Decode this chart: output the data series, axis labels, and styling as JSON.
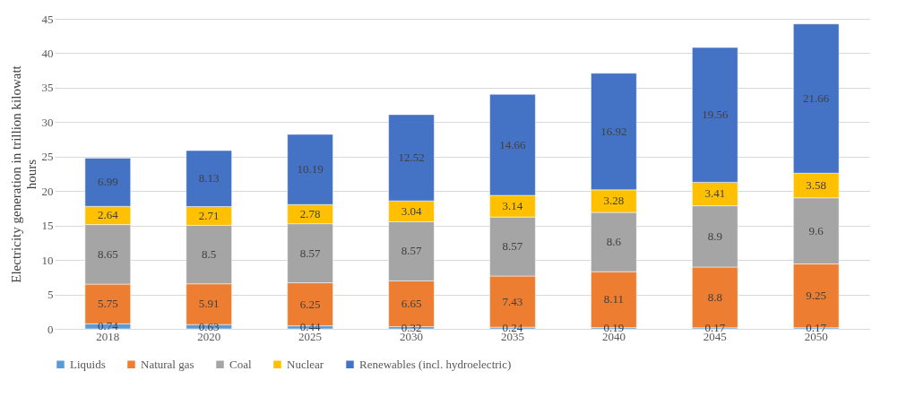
{
  "chart_data": {
    "type": "bar",
    "stacked": true,
    "ylabel": "Electricity generation in trillion kilowatt hours",
    "categories": [
      "2018",
      "2020",
      "2025",
      "2030",
      "2035",
      "2040",
      "2045",
      "2050"
    ],
    "series": [
      {
        "name": "Liquids",
        "color": "#5b9bd5",
        "values": [
          0.74,
          0.63,
          0.44,
          0.32,
          0.24,
          0.19,
          0.17,
          0.17
        ]
      },
      {
        "name": "Natural gas",
        "color": "#ed7d31",
        "values": [
          5.75,
          5.91,
          6.25,
          6.65,
          7.43,
          8.11,
          8.8,
          9.25
        ]
      },
      {
        "name": "Coal",
        "color": "#a5a5a5",
        "values": [
          8.65,
          8.5,
          8.57,
          8.57,
          8.57,
          8.6,
          8.9,
          9.6
        ]
      },
      {
        "name": "Nuclear",
        "color": "#ffc000",
        "values": [
          2.64,
          2.71,
          2.78,
          3.04,
          3.14,
          3.28,
          3.41,
          3.58
        ]
      },
      {
        "name": "Renewables (incl. hydroelectric)",
        "color": "#4472c4",
        "values": [
          6.99,
          8.13,
          10.19,
          12.52,
          14.66,
          16.92,
          19.56,
          21.66
        ]
      }
    ],
    "ylim": [
      0,
      45
    ],
    "yticks": [
      0,
      5,
      10,
      15,
      20,
      25,
      30,
      35,
      40,
      45
    ],
    "grid": "y",
    "legend": "bottom",
    "data_labels": true
  }
}
